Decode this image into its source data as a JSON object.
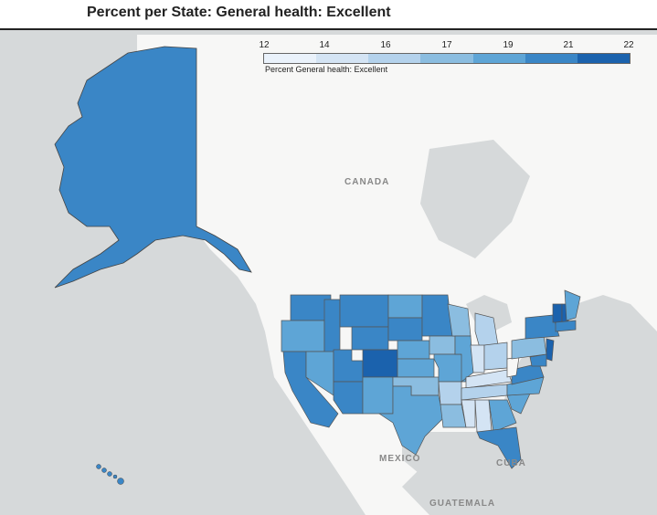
{
  "title": "Percent per State: General health: Excellent",
  "legend": {
    "ticks": [
      "12",
      "14",
      "16",
      "17",
      "19",
      "21",
      "22"
    ],
    "caption": "Percent General health: Excellent",
    "colors": [
      "#eaf2fb",
      "#d4e4f4",
      "#b4d2ec",
      "#8bbde0",
      "#5ea5d6",
      "#3a86c6",
      "#1b62ad"
    ]
  },
  "labels": {
    "canada": "CANADA",
    "mexico": "MEXICO",
    "cuba": "CUBA",
    "guatemala": "GUATEMALA"
  },
  "colors": {
    "land": "#f7f7f6",
    "water": "#d6d9da",
    "state_border": "#555555"
  }
}
